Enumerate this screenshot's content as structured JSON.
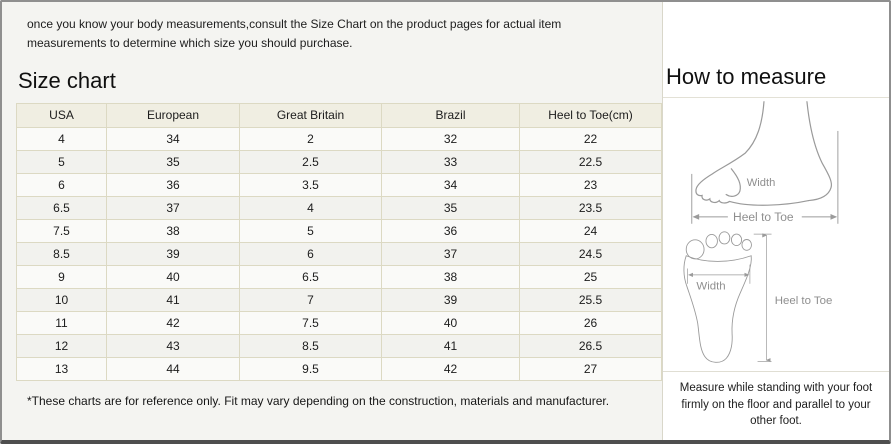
{
  "intro_text": "once you know your body measurements,consult the Size Chart on the product pages for actual item measurements to determine which size you should purchase.",
  "size_chart": {
    "title": "Size chart",
    "columns": [
      "USA",
      "European",
      "Great Britain",
      "Brazil",
      "Heel to Toe(cm)"
    ],
    "rows": [
      [
        "4",
        "34",
        "2",
        "32",
        "22"
      ],
      [
        "5",
        "35",
        "2.5",
        "33",
        "22.5"
      ],
      [
        "6",
        "36",
        "3.5",
        "34",
        "23"
      ],
      [
        "6.5",
        "37",
        "4",
        "35",
        "23.5"
      ],
      [
        "7.5",
        "38",
        "5",
        "36",
        "24"
      ],
      [
        "8.5",
        "39",
        "6",
        "37",
        "24.5"
      ],
      [
        "9",
        "40",
        "6.5",
        "38",
        "25"
      ],
      [
        "10",
        "41",
        "7",
        "39",
        "25.5"
      ],
      [
        "11",
        "42",
        "7.5",
        "40",
        "26"
      ],
      [
        "12",
        "43",
        "8.5",
        "41",
        "26.5"
      ],
      [
        "13",
        "44",
        "9.5",
        "42",
        "27"
      ]
    ],
    "footnote": "*These charts are for reference only. Fit may vary depending on the construction, materials and manufacturer."
  },
  "how_to_measure": {
    "title": "How to measure",
    "side_view": {
      "width_label": "Width",
      "length_label": "Heel to Toe"
    },
    "top_view": {
      "width_label": "Width",
      "length_label": "Heel to Toe"
    },
    "instruction": "Measure while standing with your foot firmly on the floor and parallel to your other foot."
  },
  "colors": {
    "table_header_bg": "#f0eee2",
    "table_border": "#d9d6c0",
    "panel_bg": "#f4f4f1",
    "diagram_gray": "#9a9a9a",
    "frame_border": "#8f8f8f"
  }
}
